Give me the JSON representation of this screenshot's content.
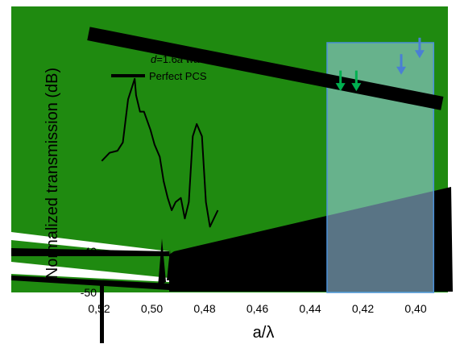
{
  "chart_data": {
    "type": "line",
    "xlabel": "a/λ",
    "ylabel": "Normalized transmission (dB)",
    "x_reversed": true,
    "xlim": [
      0.524,
      0.388
    ],
    "ylim": [
      -50,
      13
    ],
    "x_ticks": [
      "0,52",
      "0,50",
      "0,48",
      "0,46",
      "0,44",
      "0,42",
      "0,40"
    ],
    "x_tick_values": [
      0.52,
      0.5,
      0.48,
      0.46,
      0.44,
      0.42,
      0.4
    ],
    "y_ticks": [
      "-40",
      "-50"
    ],
    "y_tick_values": [
      -40,
      -50
    ],
    "grid": false,
    "legend_position": "top-center",
    "colors": {
      "plot_background": "#1f8a10",
      "series_line": "#000000",
      "highlight_band": "#a3d3f2",
      "highlight_border": "#4a90d9",
      "arrow_green": "#00b050",
      "arrow_blue": "#4a7fd4"
    },
    "series": [
      {
        "name": "d=1.6a waveguide",
        "x": [
          0.519,
          0.516,
          0.513,
          0.511,
          0.509,
          0.5065,
          0.506,
          0.5045,
          0.503,
          0.5005,
          0.499,
          0.497,
          0.4955,
          0.494,
          0.4925,
          0.491,
          0.489,
          0.4875,
          0.486,
          0.4845,
          0.483,
          0.481,
          0.4795,
          0.478,
          0.4765,
          0.475
        ],
        "y": [
          -18,
          -16,
          -15.5,
          -13.5,
          -3,
          2,
          -2,
          -6,
          -6,
          -10.5,
          -14,
          -17,
          -23,
          -27,
          -30,
          -28,
          -27,
          -32,
          -28,
          -12,
          -9,
          -12,
          -28,
          -34,
          -32,
          -30
        ]
      },
      {
        "name": "Perfect PCS",
        "x": [
          0.524,
          0.39
        ],
        "y": [
          13,
          -4
        ]
      }
    ],
    "highlight_band": {
      "x_from": 0.4336,
      "x_to": 0.3932,
      "y_from": 15,
      "y_to": -50
    },
    "arrows": [
      {
        "color": "green",
        "x": 0.4285,
        "y_from": 4,
        "y_to": -1
      },
      {
        "color": "green",
        "x": 0.4225,
        "y_from": 4,
        "y_to": -1
      },
      {
        "color": "blue",
        "x": 0.4055,
        "y_from": 8,
        "y_to": 3
      },
      {
        "color": "blue",
        "x": 0.3985,
        "y_from": 12,
        "y_to": 7
      }
    ]
  },
  "legend": {
    "waveguide_label_italic": "d",
    "waveguide_label_rest": "=1.6",
    "waveguide_label_italic2": "a",
    "waveguide_label_tail": " waveguide",
    "pcs_label": "Perfect PCS"
  }
}
